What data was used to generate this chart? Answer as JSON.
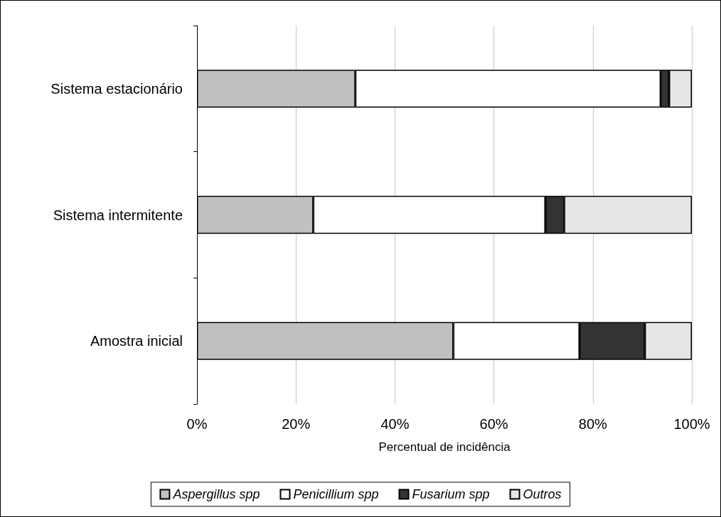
{
  "chart_data": {
    "type": "bar",
    "orientation": "horizontal",
    "stacked": true,
    "xlabel": "Percentual de incidência",
    "categories": [
      "Sistema estacionário",
      "Sistema intermitente",
      "Amostra inicial"
    ],
    "series": [
      {
        "name": "Aspergillus spp",
        "color": "#c0c0c0",
        "values": [
          32,
          23.5,
          51.8
        ]
      },
      {
        "name": "Penicillium spp",
        "color": "#ffffff",
        "values": [
          61.7,
          46.9,
          25.5
        ]
      },
      {
        "name": "Fusarium spp",
        "color": "#333333",
        "values": [
          1.7,
          3.8,
          13.2
        ]
      },
      {
        "name": "Outros",
        "color": "#e6e6e6",
        "values": [
          4.6,
          25.8,
          9.5
        ]
      }
    ],
    "xlim": [
      0,
      100
    ],
    "xticks": [
      {
        "value": 0,
        "label": "0%"
      },
      {
        "value": 20,
        "label": "20%"
      },
      {
        "value": 40,
        "label": "40%"
      },
      {
        "value": 60,
        "label": "60%"
      },
      {
        "value": 80,
        "label": "80%"
      },
      {
        "value": 100,
        "label": "100%"
      }
    ],
    "grid": "x",
    "legend": "bottom"
  }
}
